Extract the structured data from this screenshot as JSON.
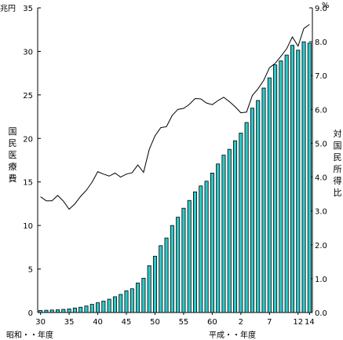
{
  "chart_data": {
    "type": "bar+line",
    "left_unit": "兆円",
    "right_unit": "%",
    "left_axis_label": "国民医療費",
    "right_axis_label": "対国民所得比",
    "era_label_left": "昭和・・年度",
    "era_label_right": "平成・・年度",
    "left_ticks": [
      "0",
      "5",
      "10",
      "15",
      "20",
      "25",
      "30",
      "35"
    ],
    "right_ticks": [
      "0.0",
      "1.0",
      "2.0",
      "3.0",
      "4.0",
      "5.0",
      "6.0",
      "7.0",
      "8.0",
      "9.0"
    ],
    "ylim_left": [
      0,
      35
    ],
    "ylim_right": [
      0,
      9
    ],
    "x_tick_labels": [
      {
        "index": 0,
        "label": "30"
      },
      {
        "index": 5,
        "label": "35"
      },
      {
        "index": 10,
        "label": "40"
      },
      {
        "index": 15,
        "label": "45"
      },
      {
        "index": 20,
        "label": "50"
      },
      {
        "index": 25,
        "label": "55"
      },
      {
        "index": 30,
        "label": "60"
      },
      {
        "index": 35,
        "label": "2"
      },
      {
        "index": 40,
        "label": "7"
      },
      {
        "index": 45,
        "label": "12"
      },
      {
        "index": 47,
        "label": "14"
      }
    ],
    "categories": [
      "S30",
      "S31",
      "S32",
      "S33",
      "S34",
      "S35",
      "S36",
      "S37",
      "S38",
      "S39",
      "S40",
      "S41",
      "S42",
      "S43",
      "S44",
      "S45",
      "S46",
      "S47",
      "S48",
      "S49",
      "S50",
      "S51",
      "S52",
      "S53",
      "S54",
      "S55",
      "S56",
      "S57",
      "S58",
      "S59",
      "S60",
      "S61",
      "S62",
      "S63",
      "H1",
      "H2",
      "H3",
      "H4",
      "H5",
      "H6",
      "H7",
      "H8",
      "H9",
      "H10",
      "H11",
      "H12",
      "H13",
      "H14"
    ],
    "series": [
      {
        "kind": "bar",
        "color": "#2ec8c8",
        "values": [
          0.24,
          0.26,
          0.29,
          0.31,
          0.36,
          0.41,
          0.52,
          0.61,
          0.75,
          0.94,
          1.12,
          1.31,
          1.53,
          1.81,
          2.08,
          2.5,
          2.73,
          3.39,
          3.94,
          5.38,
          6.47,
          7.68,
          8.56,
          10.0,
          10.95,
          11.98,
          12.88,
          13.86,
          14.54,
          15.09,
          16.02,
          17.07,
          18.08,
          18.75,
          19.73,
          20.61,
          21.83,
          23.48,
          24.36,
          25.79,
          26.96,
          28.45,
          28.91,
          29.58,
          30.7,
          30.14,
          31.1,
          30.95
        ]
      },
      {
        "kind": "line",
        "color": "#000000",
        "values": [
          3.42,
          3.3,
          3.3,
          3.46,
          3.29,
          3.05,
          3.21,
          3.43,
          3.61,
          3.85,
          4.16,
          4.09,
          4.03,
          4.12,
          4.0,
          4.09,
          4.13,
          4.36,
          4.14,
          4.82,
          5.22,
          5.46,
          5.49,
          5.82,
          6.0,
          6.03,
          6.15,
          6.32,
          6.31,
          6.19,
          6.14,
          6.26,
          6.36,
          6.23,
          6.08,
          5.9,
          5.92,
          6.41,
          6.61,
          6.86,
          7.23,
          7.36,
          7.57,
          7.79,
          8.14,
          7.87,
          8.39,
          8.51
        ]
      }
    ]
  }
}
